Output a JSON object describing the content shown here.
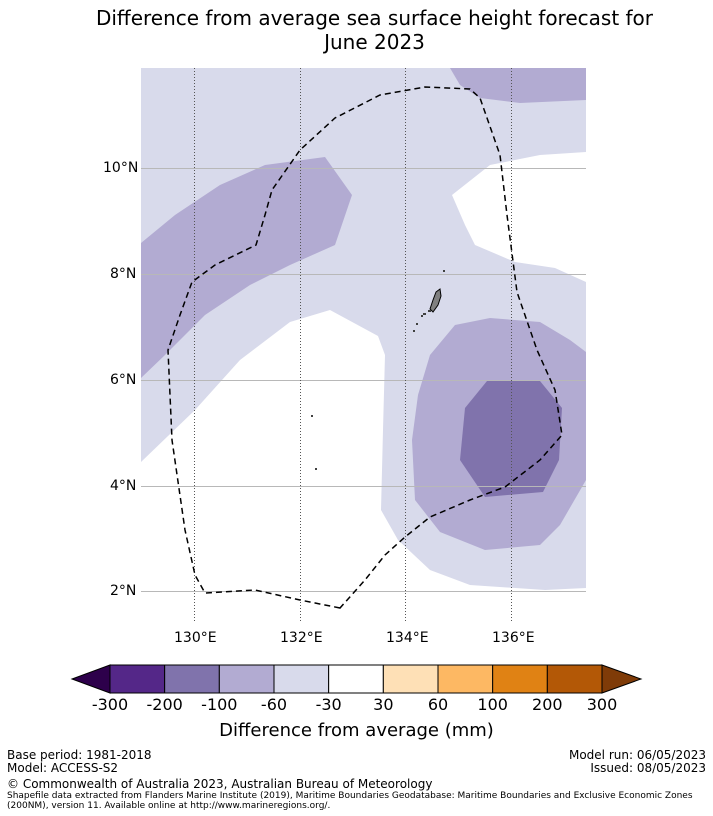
{
  "title": {
    "line1": "Difference from average sea surface height forecast for",
    "line2": "June 2023"
  },
  "map": {
    "lat_labels": [
      "10°N",
      "8°N",
      "6°N",
      "4°N",
      "2°N"
    ],
    "lon_labels": [
      "130°E",
      "132°E",
      "134°E",
      "136°E"
    ]
  },
  "colorbar": {
    "ticks": [
      "-300",
      "-200",
      "-100",
      "-60",
      "-30",
      "30",
      "60",
      "100",
      "200",
      "300"
    ],
    "label": "Difference from average (mm)",
    "colors": {
      "below_min": "#2d004b",
      "b1": "#542788",
      "b2": "#8073ac",
      "b3": "#b2abd2",
      "b4": "#d8daeb",
      "b5": "#ffffff",
      "b6": "#fee0b6",
      "b7": "#fdb863",
      "b8": "#e08214",
      "b9": "#b35806",
      "above_max": "#7f3b08"
    }
  },
  "footer": {
    "base_period": "Base period: 1981-2018",
    "model": "Model: ACCESS-S2",
    "model_run": "Model run: 06/05/2023",
    "issued": "Issued: 08/05/2023",
    "copyright": "© Commonwealth of Australia 2023, Australian Bureau of Meteorology",
    "shapefile_line1": "Shapefile data extracted from Flanders Marine Institute (2019), Maritime Boundaries Geodatabase: Maritime Boundaries and Exclusive Economic Zones",
    "shapefile_line2": "(200NM), version 11. Available online at http://www.marineregions.org/."
  }
}
